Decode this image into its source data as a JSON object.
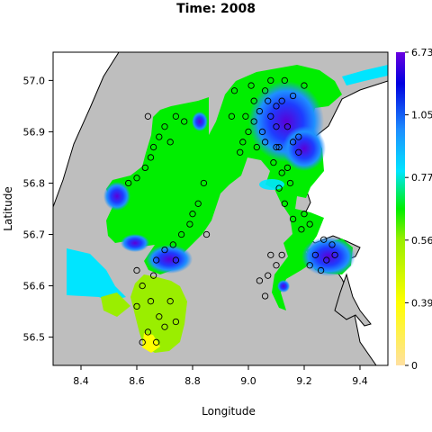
{
  "chart_data": {
    "type": "heatmap",
    "title": "Time: 2008",
    "xlabel": "Longitude",
    "ylabel": "Latitude",
    "xlim": [
      8.3,
      9.5
    ],
    "ylim": [
      56.445,
      57.055
    ],
    "x_ticks": [
      8.4,
      8.6,
      8.8,
      9.0,
      9.2,
      9.4
    ],
    "x_tick_labels": [
      "8.4",
      "8.6",
      "8.8",
      "9.0",
      "9.2",
      "9.4"
    ],
    "y_ticks": [
      56.5,
      56.6,
      56.7,
      56.8,
      56.9,
      57.0
    ],
    "y_tick_labels": [
      "56.5",
      "56.6",
      "56.7",
      "56.8",
      "56.9",
      "57.0"
    ],
    "colorbar": {
      "tick_labels": [
        "0",
        "0.39",
        "0.56",
        "0.77",
        "1.05",
        "6.73"
      ],
      "colors_bottom_to_top": [
        "#ffe0a0",
        "#ffff00",
        "#9aee00",
        "#00ee00",
        "#00e5ff",
        "#1e90ff",
        "#0000e0",
        "#6a00e0"
      ]
    },
    "land_color": "#bebebe",
    "sample_points": [
      [
        9.1,
        56.95
      ],
      [
        9.06,
        56.98
      ],
      [
        9.13,
        57.0
      ],
      [
        9.02,
        56.96
      ],
      [
        8.95,
        56.98
      ],
      [
        8.99,
        56.93
      ],
      [
        9.05,
        56.9
      ],
      [
        9.11,
        56.87
      ],
      [
        9.14,
        56.91
      ],
      [
        9.18,
        56.86
      ],
      [
        9.08,
        56.93
      ],
      [
        9.0,
        56.9
      ],
      [
        8.97,
        56.86
      ],
      [
        9.03,
        56.87
      ],
      [
        9.16,
        56.97
      ],
      [
        9.2,
        56.99
      ],
      [
        9.08,
        57.0
      ],
      [
        9.04,
        56.94
      ],
      [
        9.12,
        56.96
      ],
      [
        8.94,
        56.93
      ],
      [
        9.09,
        56.84
      ],
      [
        9.14,
        56.83
      ],
      [
        9.18,
        56.89
      ],
      [
        9.06,
        56.88
      ],
      [
        9.01,
        56.99
      ],
      [
        9.15,
        56.8
      ],
      [
        9.11,
        56.79
      ],
      [
        9.13,
        56.76
      ],
      [
        9.16,
        56.73
      ],
      [
        9.19,
        56.71
      ],
      [
        9.22,
        56.72
      ],
      [
        9.2,
        56.74
      ],
      [
        9.12,
        56.82
      ],
      [
        8.98,
        56.88
      ],
      [
        9.02,
        56.92
      ],
      [
        9.07,
        56.96
      ],
      [
        9.1,
        56.91
      ],
      [
        8.64,
        56.93
      ],
      [
        8.7,
        56.91
      ],
      [
        8.74,
        56.93
      ],
      [
        8.68,
        56.89
      ],
      [
        8.77,
        56.92
      ],
      [
        8.66,
        56.87
      ],
      [
        8.72,
        56.88
      ],
      [
        8.63,
        56.83
      ],
      [
        8.6,
        56.81
      ],
      [
        8.57,
        56.8
      ],
      [
        8.65,
        56.85
      ],
      [
        8.84,
        56.8
      ],
      [
        8.82,
        56.76
      ],
      [
        8.79,
        56.72
      ],
      [
        8.76,
        56.7
      ],
      [
        8.73,
        56.68
      ],
      [
        8.8,
        56.74
      ],
      [
        8.85,
        56.7
      ],
      [
        8.7,
        56.67
      ],
      [
        8.67,
        56.65
      ],
      [
        8.74,
        56.65
      ],
      [
        8.62,
        56.6
      ],
      [
        8.65,
        56.57
      ],
      [
        8.6,
        56.56
      ],
      [
        8.68,
        56.54
      ],
      [
        8.64,
        56.51
      ],
      [
        8.7,
        56.52
      ],
      [
        8.72,
        56.57
      ],
      [
        8.62,
        56.49
      ],
      [
        8.67,
        56.49
      ],
      [
        8.74,
        56.53
      ],
      [
        8.66,
        56.62
      ],
      [
        8.6,
        56.63
      ],
      [
        9.24,
        56.66
      ],
      [
        9.28,
        56.65
      ],
      [
        9.31,
        56.66
      ],
      [
        9.26,
        56.63
      ],
      [
        9.22,
        56.64
      ],
      [
        9.3,
        56.68
      ],
      [
        9.27,
        56.69
      ],
      [
        9.1,
        56.64
      ],
      [
        9.07,
        56.62
      ],
      [
        9.04,
        56.61
      ],
      [
        9.12,
        56.66
      ],
      [
        9.08,
        56.66
      ],
      [
        9.06,
        56.58
      ],
      [
        9.1,
        56.87
      ],
      [
        9.16,
        56.88
      ]
    ]
  }
}
